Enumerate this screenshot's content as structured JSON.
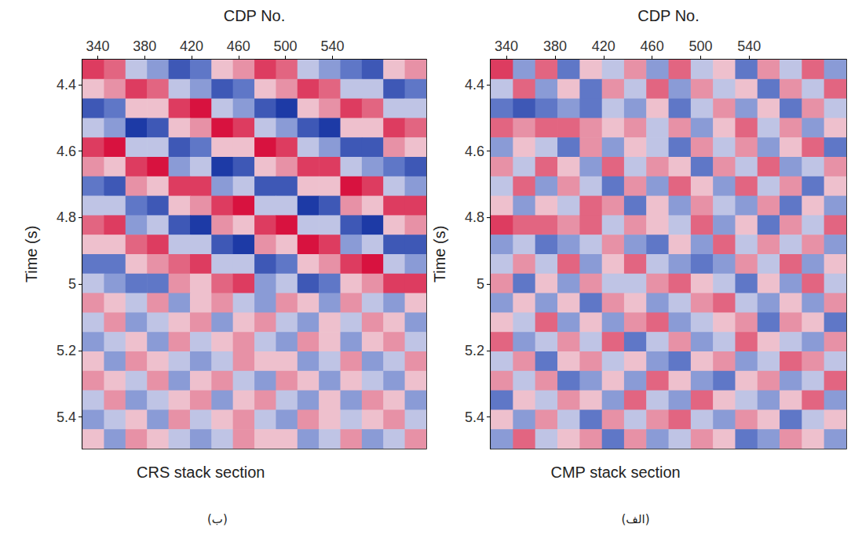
{
  "chart_data": [
    {
      "type": "heatmap",
      "title": "CRS stack section",
      "subtitle": "(ب)",
      "x_label": "CDP No.",
      "y_label": "Time (s)",
      "xlim": [
        327,
        620
      ],
      "xticks": [
        340,
        380,
        420,
        460,
        500,
        540
      ],
      "ylim": [
        4.325,
        5.495
      ],
      "yticks": [
        4.4,
        4.6,
        4.8,
        5,
        5.2,
        5.4
      ],
      "zlim": [
        -5,
        5
      ],
      "x": [
        336.2,
        354.5,
        372.8,
        391.2,
        409.5,
        427.8,
        446.0,
        464.4,
        482.7,
        501.0,
        519.3,
        537.6,
        555.9,
        574.2,
        592.5,
        610.8
      ],
      "y": [
        4.354,
        4.413,
        4.471,
        4.53,
        4.588,
        4.647,
        4.705,
        4.764,
        4.822,
        4.881,
        4.939,
        4.998,
        5.056,
        5.115,
        5.173,
        5.232,
        5.29,
        5.349,
        5.407,
        5.466
      ],
      "cells": [
        [
          4,
          3,
          -1,
          -2,
          -4,
          -3,
          1,
          2,
          4,
          3,
          -1,
          -2,
          -3,
          -4,
          1,
          2
        ],
        [
          1,
          2,
          4,
          3,
          -1,
          -2,
          -4,
          -3,
          1,
          2,
          4,
          3,
          -1,
          -1,
          -4,
          -3
        ],
        [
          -4,
          -3,
          1,
          1,
          4,
          5,
          -1,
          -2,
          -4,
          -5,
          1,
          2,
          4,
          3,
          -1,
          -1
        ],
        [
          -1,
          -2,
          -5,
          -4,
          1,
          2,
          5,
          4,
          -1,
          -2,
          -4,
          -5,
          1,
          1,
          4,
          3
        ],
        [
          4,
          5,
          -1,
          -1,
          -4,
          -3,
          1,
          1,
          5,
          4,
          -1,
          -2,
          -4,
          -4,
          2,
          1
        ],
        [
          2,
          1,
          4,
          5,
          -2,
          -1,
          -5,
          -4,
          1,
          2,
          4,
          4,
          -1,
          -2,
          -3,
          -4
        ],
        [
          -3,
          -4,
          2,
          1,
          4,
          4,
          -2,
          -1,
          -4,
          -4,
          1,
          1,
          5,
          4,
          -1,
          -2
        ],
        [
          -1,
          -1,
          -3,
          -4,
          1,
          2,
          4,
          5,
          -1,
          -1,
          -5,
          -4,
          2,
          1,
          4,
          4
        ],
        [
          3,
          4,
          -2,
          -1,
          -4,
          -5,
          2,
          1,
          4,
          5,
          -1,
          -1,
          -4,
          -5,
          1,
          2
        ],
        [
          1,
          1,
          3,
          4,
          -1,
          -1,
          -4,
          -5,
          2,
          1,
          5,
          4,
          -2,
          -1,
          -4,
          -4
        ],
        [
          -3,
          -3,
          1,
          2,
          3,
          4,
          -1,
          -1,
          -4,
          -3,
          1,
          2,
          4,
          5,
          -1,
          -2
        ],
        [
          -1,
          -2,
          -3,
          -3,
          2,
          1,
          3,
          4,
          -2,
          -1,
          -4,
          -3,
          1,
          2,
          4,
          4
        ],
        [
          2,
          1,
          -1,
          2,
          -2,
          1,
          2,
          -1,
          -2,
          2,
          1,
          -2,
          2,
          -1,
          -2,
          1
        ],
        [
          -1,
          2,
          -2,
          -1,
          1,
          2,
          -2,
          1,
          2,
          -1,
          -2,
          1,
          -1,
          2,
          1,
          -2
        ],
        [
          -2,
          -1,
          1,
          -2,
          2,
          -1,
          1,
          2,
          -1,
          -2,
          2,
          1,
          -2,
          1,
          2,
          -1
        ],
        [
          1,
          -2,
          2,
          1,
          -1,
          -2,
          -1,
          2,
          1,
          1,
          -2,
          -1,
          2,
          -2,
          -1,
          2
        ],
        [
          2,
          1,
          -1,
          2,
          -2,
          1,
          2,
          -1,
          -2,
          2,
          1,
          -2,
          1,
          -1,
          -2,
          1
        ],
        [
          -1,
          2,
          -2,
          -1,
          1,
          2,
          -2,
          1,
          2,
          -1,
          -2,
          1,
          -2,
          2,
          1,
          -2
        ],
        [
          -2,
          -1,
          1,
          -2,
          2,
          -1,
          1,
          2,
          -1,
          -2,
          2,
          1,
          -1,
          1,
          2,
          -1
        ],
        [
          1,
          -2,
          2,
          1,
          -1,
          -2,
          -1,
          2,
          1,
          1,
          -2,
          -1,
          2,
          -2,
          -1,
          2
        ]
      ]
    },
    {
      "type": "heatmap",
      "title": "CMP stack section",
      "subtitle": "(الف)",
      "x_label": "CDP No.",
      "y_label": "Time (s)",
      "xlim": [
        327,
        620
      ],
      "xticks": [
        340,
        380,
        420,
        460,
        500,
        540
      ],
      "ylim": [
        4.325,
        5.495
      ],
      "yticks": [
        4.4,
        4.6,
        4.8,
        5,
        5.2,
        5.4
      ],
      "zlim": [
        -5,
        5
      ],
      "x": [
        336.2,
        354.5,
        372.8,
        391.2,
        409.5,
        427.8,
        446.0,
        464.4,
        482.7,
        501.0,
        519.3,
        537.6,
        555.9,
        574.2,
        592.5,
        610.8
      ],
      "y": [
        4.354,
        4.413,
        4.471,
        4.53,
        4.588,
        4.647,
        4.705,
        4.764,
        4.822,
        4.881,
        4.939,
        4.998,
        5.056,
        5.115,
        5.173,
        5.232,
        5.29,
        5.349,
        5.407,
        5.466
      ],
      "cells": [
        [
          4,
          -2,
          3,
          -3,
          1,
          -1,
          2,
          -2,
          3,
          -1,
          1,
          -3,
          2,
          -1,
          3,
          -2
        ],
        [
          -1,
          3,
          -2,
          1,
          -3,
          2,
          -1,
          3,
          -2,
          2,
          -1,
          1,
          -3,
          2,
          -1,
          3
        ],
        [
          -3,
          -4,
          -3,
          -2,
          -3,
          -1,
          -2,
          1,
          -3,
          -1,
          2,
          -2,
          1,
          -3,
          2,
          -1
        ],
        [
          3,
          2,
          3,
          3,
          2,
          1,
          2,
          -1,
          2,
          -2,
          1,
          3,
          -1,
          2,
          -2,
          1
        ],
        [
          -2,
          1,
          -1,
          -3,
          2,
          -2,
          1,
          -1,
          -3,
          2,
          -1,
          2,
          -2,
          1,
          3,
          -3
        ],
        [
          2,
          -1,
          3,
          1,
          -2,
          3,
          -1,
          2,
          1,
          -3,
          2,
          -1,
          3,
          -2,
          -1,
          2
        ],
        [
          -1,
          3,
          -2,
          2,
          -1,
          -3,
          2,
          -2,
          3,
          1,
          -2,
          3,
          -1,
          2,
          -3,
          1
        ],
        [
          1,
          -2,
          1,
          -1,
          3,
          2,
          -3,
          1,
          -2,
          2,
          -1,
          -2,
          2,
          -3,
          1,
          -2
        ],
        [
          4,
          3,
          3,
          2,
          3,
          -1,
          2,
          1,
          -1,
          3,
          -2,
          1,
          -3,
          2,
          -1,
          3
        ],
        [
          -2,
          -1,
          -3,
          -2,
          -1,
          2,
          -2,
          -3,
          1,
          -2,
          3,
          -1,
          2,
          -1,
          2,
          -2
        ],
        [
          -1,
          2,
          -1,
          3,
          -2,
          1,
          3,
          -1,
          -2,
          -3,
          -2,
          2,
          -1,
          3,
          -2,
          1
        ],
        [
          2,
          -3,
          1,
          -2,
          2,
          -1,
          -1,
          2,
          3,
          1,
          -1,
          -3,
          1,
          -2,
          3,
          -1
        ],
        [
          -2,
          1,
          -2,
          1,
          -3,
          2,
          1,
          -2,
          -1,
          2,
          3,
          -1,
          -2,
          1,
          -2,
          2
        ],
        [
          1,
          -1,
          3,
          -2,
          1,
          -2,
          2,
          3,
          -2,
          -1,
          1,
          2,
          -3,
          2,
          1,
          -3
        ],
        [
          3,
          -2,
          -1,
          2,
          -1,
          3,
          -3,
          -1,
          2,
          -2,
          -1,
          3,
          1,
          -1,
          -2,
          2
        ],
        [
          -1,
          2,
          -3,
          1,
          2,
          -1,
          1,
          -2,
          -3,
          1,
          2,
          -2,
          -1,
          3,
          2,
          -1
        ],
        [
          2,
          -1,
          2,
          -3,
          -2,
          1,
          -2,
          3,
          1,
          -2,
          -3,
          1,
          2,
          -2,
          -1,
          3
        ],
        [
          -3,
          1,
          -1,
          2,
          1,
          -2,
          3,
          -1,
          -2,
          3,
          1,
          -1,
          -2,
          1,
          3,
          -2
        ],
        [
          1,
          -2,
          2,
          -1,
          -3,
          2,
          -1,
          2,
          3,
          -1,
          -2,
          2,
          1,
          -3,
          -1,
          1
        ],
        [
          -2,
          3,
          -1,
          1,
          2,
          -3,
          2,
          -2,
          -1,
          2,
          1,
          -3,
          -2,
          2,
          1,
          -2
        ]
      ]
    }
  ]
}
